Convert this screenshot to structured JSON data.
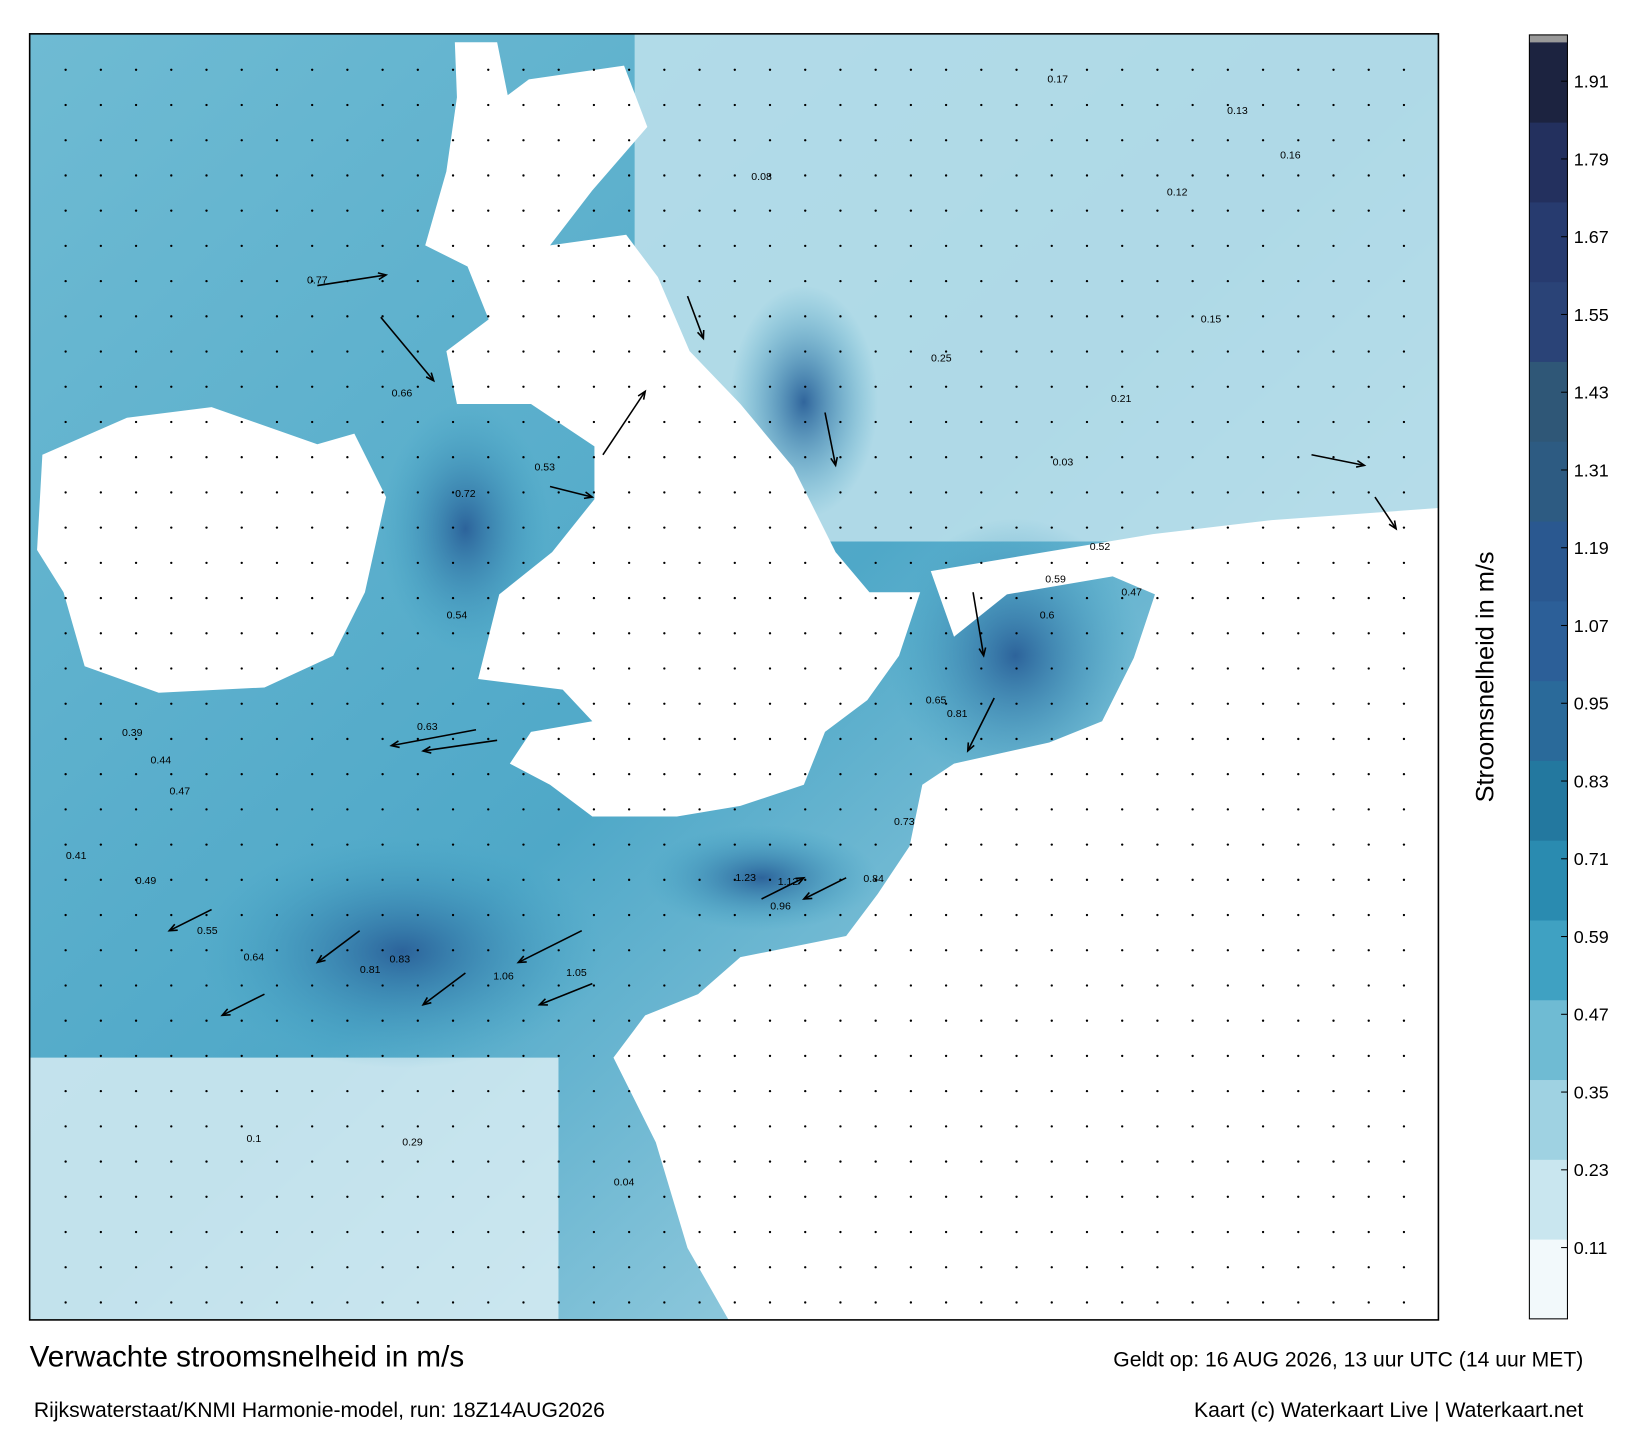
{
  "map": {
    "title": "Verwachte stroomsnelheid in m/s",
    "valid_time": "Geldt op: 16 AUG 2026, 13 uur UTC (14 uur MET)",
    "model_run": "Rijkswaterstaat/KNMI Harmonie-model, run: 18Z14AUG2026",
    "credit": "Kaart (c) Waterkaart Live | Waterkaart.net",
    "colorbar": {
      "label": "Stroomsnelheid in m/s",
      "lim": [
        0,
        1.97
      ],
      "ticks": [
        0.11,
        0.23,
        0.35,
        0.47,
        0.59,
        0.71,
        0.83,
        0.95,
        1.07,
        1.19,
        1.31,
        1.43,
        1.55,
        1.67,
        1.79,
        1.91
      ],
      "colors": [
        "#f2f9fb",
        "#c9e6ef",
        "#9fd2e2",
        "#6fbbd3",
        "#3fa1c2",
        "#2a8bb0",
        "#23789f",
        "#2a6a9a",
        "#2c5f98",
        "#2a5890",
        "#2d5b82",
        "#2f5777",
        "#2a4377",
        "#273b6f",
        "#23305e",
        "#1c2340"
      ]
    },
    "speed_labels": [
      0.77,
      0.72,
      0.66,
      0.54,
      0.63,
      0.53,
      0.44,
      0.47,
      0.41,
      0.49,
      0.55,
      0.64,
      0.81,
      0.83,
      1.06,
      1.05,
      1.23,
      1.12,
      0.96,
      0.84,
      0.73,
      0.65,
      0.81,
      0.59,
      0.6,
      0.52,
      0.47,
      0.29,
      0.1,
      0.17,
      0.13,
      0.12,
      0.16,
      0.15,
      0.25,
      0.21,
      0.03,
      0.04,
      0.08,
      0.39
    ]
  }
}
